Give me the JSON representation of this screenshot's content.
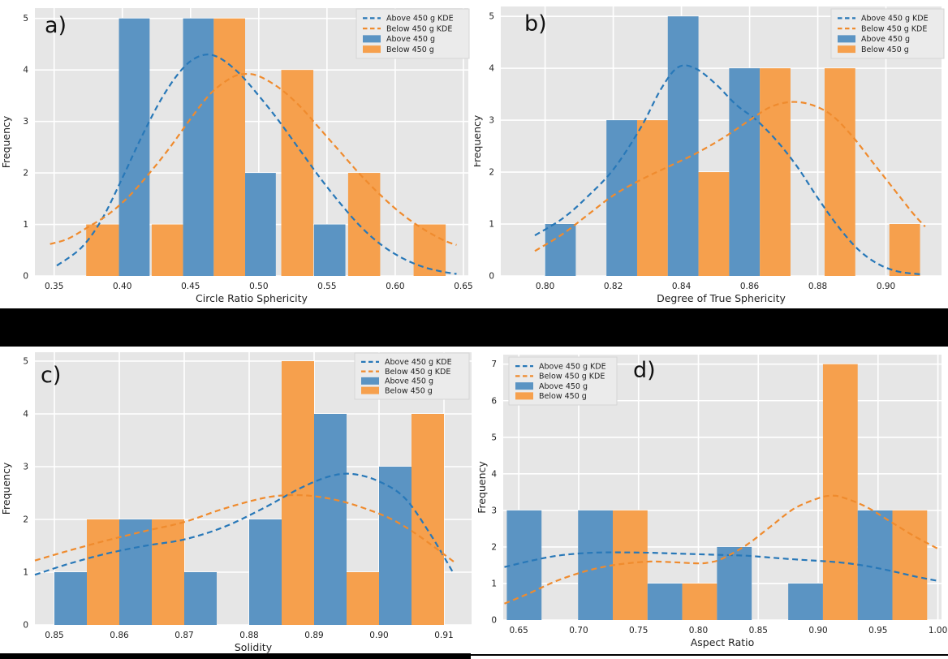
{
  "colors": {
    "hist_above": "#5b94c3",
    "hist_below": "#f6a04d",
    "kde_above": "#2878b8",
    "kde_below": "#ef8b2e",
    "plot_bg": "#e6e6e6",
    "grid": "#ffffff",
    "legend_bg": "#ebebeb",
    "legend_border": "#d6d6d6",
    "text": "#1f1f1f",
    "separator": "#000000"
  },
  "legend": {
    "items": [
      {
        "label": "Above 450 g KDE",
        "swatch": "dashed-line",
        "series": "above"
      },
      {
        "label": "Below 450 g KDE",
        "swatch": "dashed-line",
        "series": "below"
      },
      {
        "label": "Above 450 g",
        "swatch": "patch",
        "series": "above"
      },
      {
        "label": "Below 450 g",
        "swatch": "patch",
        "series": "below"
      }
    ]
  },
  "chart_data": [
    {
      "id": "a",
      "panel_label": "a)",
      "type": "histogram+kde",
      "xlabel": "Circle Ratio Sphericity",
      "ylabel": "Frequency",
      "xlim": [
        0.3359,
        0.6536
      ],
      "ylim": [
        0,
        5.2
      ],
      "xticks": [
        "0.35",
        "0.40",
        "0.45",
        "0.50",
        "0.55",
        "0.60",
        "0.65"
      ],
      "yticks": [
        "0",
        "1",
        "2",
        "3",
        "4",
        "5"
      ],
      "grid": true,
      "legend_position": "top-right",
      "series_names": {
        "above": "Above 450 g",
        "below": "Below 450 g"
      },
      "bars": [
        [
          0.3735,
          0.3975,
          1,
          "below"
        ],
        [
          0.3975,
          0.42,
          5,
          "above"
        ],
        [
          0.4215,
          0.4445,
          1,
          "below"
        ],
        [
          0.4445,
          0.467,
          5,
          "above"
        ],
        [
          0.467,
          0.49,
          5,
          "below"
        ],
        [
          0.49,
          0.5125,
          2,
          "above"
        ],
        [
          0.5165,
          0.54,
          4,
          "below"
        ],
        [
          0.5405,
          0.5635,
          1,
          "above"
        ],
        [
          0.5655,
          0.589,
          2,
          "below"
        ],
        [
          0.6135,
          0.637,
          1,
          "below"
        ]
      ],
      "kde": {
        "above": [
          [
            0.352,
            0.2
          ],
          [
            0.37,
            0.55
          ],
          [
            0.385,
            1.1
          ],
          [
            0.4,
            1.9
          ],
          [
            0.415,
            2.75
          ],
          [
            0.43,
            3.5
          ],
          [
            0.445,
            4.05
          ],
          [
            0.458,
            4.28
          ],
          [
            0.47,
            4.25
          ],
          [
            0.485,
            3.95
          ],
          [
            0.5,
            3.5
          ],
          [
            0.515,
            3.0
          ],
          [
            0.53,
            2.45
          ],
          [
            0.545,
            1.9
          ],
          [
            0.56,
            1.4
          ],
          [
            0.575,
            0.95
          ],
          [
            0.59,
            0.6
          ],
          [
            0.605,
            0.35
          ],
          [
            0.62,
            0.18
          ],
          [
            0.635,
            0.08
          ],
          [
            0.645,
            0.04
          ]
        ],
        "below": [
          [
            0.347,
            0.62
          ],
          [
            0.36,
            0.72
          ],
          [
            0.375,
            0.95
          ],
          [
            0.39,
            1.2
          ],
          [
            0.405,
            1.55
          ],
          [
            0.42,
            2.0
          ],
          [
            0.435,
            2.5
          ],
          [
            0.45,
            3.05
          ],
          [
            0.465,
            3.55
          ],
          [
            0.48,
            3.85
          ],
          [
            0.49,
            3.92
          ],
          [
            0.5,
            3.88
          ],
          [
            0.515,
            3.65
          ],
          [
            0.53,
            3.3
          ],
          [
            0.545,
            2.85
          ],
          [
            0.56,
            2.4
          ],
          [
            0.575,
            1.95
          ],
          [
            0.59,
            1.55
          ],
          [
            0.605,
            1.2
          ],
          [
            0.62,
            0.92
          ],
          [
            0.635,
            0.7
          ],
          [
            0.645,
            0.6
          ]
        ]
      }
    },
    {
      "id": "b",
      "panel_label": "b)",
      "type": "histogram+kde",
      "xlabel": "Degree of True Sphericity",
      "ylabel": "Frequency",
      "xlim": [
        0.787,
        0.9163
      ],
      "ylim": [
        0,
        5.19
      ],
      "xticks": [
        "0.80",
        "0.82",
        "0.84",
        "0.86",
        "0.88",
        "0.90"
      ],
      "yticks": [
        "0",
        "1",
        "2",
        "3",
        "4",
        "5"
      ],
      "grid": true,
      "legend_position": "top-right",
      "series_names": {
        "above": "Above 450 g",
        "below": "Below 450 g"
      },
      "bars": [
        [
          0.8,
          0.809,
          1,
          "above"
        ],
        [
          0.818,
          0.827,
          3,
          "above"
        ],
        [
          0.827,
          0.836,
          3,
          "below"
        ],
        [
          0.836,
          0.845,
          5,
          "above"
        ],
        [
          0.845,
          0.854,
          2,
          "below"
        ],
        [
          0.854,
          0.863,
          4,
          "above"
        ],
        [
          0.863,
          0.872,
          4,
          "below"
        ],
        [
          0.882,
          0.891,
          4,
          "below"
        ],
        [
          0.901,
          0.91,
          1,
          "below"
        ]
      ],
      "kde": {
        "above": [
          [
            0.797,
            0.78
          ],
          [
            0.805,
            1.1
          ],
          [
            0.812,
            1.5
          ],
          [
            0.82,
            2.05
          ],
          [
            0.828,
            2.85
          ],
          [
            0.834,
            3.6
          ],
          [
            0.839,
            4.02
          ],
          [
            0.844,
            4.0
          ],
          [
            0.85,
            3.7
          ],
          [
            0.856,
            3.3
          ],
          [
            0.862,
            3.0
          ],
          [
            0.868,
            2.6
          ],
          [
            0.874,
            2.1
          ],
          [
            0.88,
            1.5
          ],
          [
            0.886,
            0.95
          ],
          [
            0.892,
            0.5
          ],
          [
            0.898,
            0.22
          ],
          [
            0.904,
            0.08
          ],
          [
            0.9105,
            0.03
          ]
        ],
        "below": [
          [
            0.797,
            0.48
          ],
          [
            0.805,
            0.8
          ],
          [
            0.812,
            1.15
          ],
          [
            0.82,
            1.55
          ],
          [
            0.828,
            1.85
          ],
          [
            0.836,
            2.1
          ],
          [
            0.844,
            2.35
          ],
          [
            0.852,
            2.65
          ],
          [
            0.86,
            3.0
          ],
          [
            0.866,
            3.25
          ],
          [
            0.872,
            3.35
          ],
          [
            0.878,
            3.3
          ],
          [
            0.884,
            3.1
          ],
          [
            0.89,
            2.7
          ],
          [
            0.896,
            2.2
          ],
          [
            0.902,
            1.7
          ],
          [
            0.908,
            1.2
          ],
          [
            0.9115,
            0.95
          ]
        ]
      }
    },
    {
      "id": "c",
      "panel_label": "c)",
      "type": "histogram+kde",
      "xlabel": "Solidity",
      "ylabel": "Frequency",
      "xlim": [
        0.847,
        0.91425
      ],
      "ylim": [
        0,
        5.169
      ],
      "xticks": [
        "0.85",
        "0.86",
        "0.87",
        "0.88",
        "0.89",
        "0.90",
        "0.91"
      ],
      "yticks": [
        "0",
        "1",
        "2",
        "3",
        "4",
        "5"
      ],
      "grid": true,
      "legend_position": "top-right",
      "series_names": {
        "above": "Above 450 g",
        "below": "Below 450 g"
      },
      "bars": [
        [
          0.85,
          0.855,
          1,
          "above"
        ],
        [
          0.855,
          0.86,
          2,
          "below"
        ],
        [
          0.86,
          0.865,
          2,
          "above"
        ],
        [
          0.865,
          0.87,
          2,
          "below"
        ],
        [
          0.87,
          0.875,
          1,
          "above"
        ],
        [
          0.88,
          0.885,
          2,
          "above"
        ],
        [
          0.885,
          0.89,
          5,
          "below"
        ],
        [
          0.89,
          0.895,
          4,
          "above"
        ],
        [
          0.895,
          0.9,
          1,
          "below"
        ],
        [
          0.9,
          0.905,
          3,
          "above"
        ],
        [
          0.905,
          0.91,
          4,
          "below"
        ]
      ],
      "kde": {
        "above": [
          [
            0.847,
            0.95
          ],
          [
            0.852,
            1.15
          ],
          [
            0.858,
            1.35
          ],
          [
            0.864,
            1.5
          ],
          [
            0.87,
            1.62
          ],
          [
            0.876,
            1.85
          ],
          [
            0.882,
            2.2
          ],
          [
            0.888,
            2.6
          ],
          [
            0.8925,
            2.82
          ],
          [
            0.896,
            2.86
          ],
          [
            0.9,
            2.72
          ],
          [
            0.904,
            2.4
          ],
          [
            0.908,
            1.7
          ],
          [
            0.9115,
            0.97
          ]
        ],
        "below": [
          [
            0.847,
            1.22
          ],
          [
            0.852,
            1.4
          ],
          [
            0.858,
            1.6
          ],
          [
            0.864,
            1.78
          ],
          [
            0.87,
            1.95
          ],
          [
            0.876,
            2.2
          ],
          [
            0.882,
            2.4
          ],
          [
            0.886,
            2.46
          ],
          [
            0.89,
            2.44
          ],
          [
            0.894,
            2.35
          ],
          [
            0.898,
            2.2
          ],
          [
            0.902,
            2.0
          ],
          [
            0.906,
            1.7
          ],
          [
            0.9115,
            1.2
          ]
        ]
      }
    },
    {
      "id": "d",
      "panel_label": "d)",
      "type": "histogram+kde",
      "xlabel": "Aspect Ratio",
      "ylabel": "Frequency",
      "xlim": [
        0.637,
        1.003
      ],
      "ylim": [
        0,
        7.26
      ],
      "xticks": [
        "0.65",
        "0.70",
        "0.75",
        "0.80",
        "0.85",
        "0.90",
        "0.95",
        "1.00"
      ],
      "yticks": [
        "0",
        "1",
        "2",
        "3",
        "4",
        "5",
        "6",
        "7"
      ],
      "grid": true,
      "legend_position": "top-left",
      "series_names": {
        "above": "Above 450 g",
        "below": "Below 450 g"
      },
      "bars": [
        [
          0.64,
          0.669,
          3,
          "above"
        ],
        [
          0.6995,
          0.7285,
          3,
          "above"
        ],
        [
          0.7285,
          0.7575,
          3,
          "below"
        ],
        [
          0.7575,
          0.7865,
          1,
          "above"
        ],
        [
          0.7865,
          0.8155,
          1,
          "below"
        ],
        [
          0.8155,
          0.8445,
          2,
          "above"
        ],
        [
          0.875,
          0.904,
          1,
          "above"
        ],
        [
          0.904,
          0.933,
          7,
          "below"
        ],
        [
          0.933,
          0.962,
          3,
          "above"
        ],
        [
          0.962,
          0.991,
          3,
          "below"
        ]
      ],
      "kde": {
        "above": [
          [
            0.638,
            1.45
          ],
          [
            0.66,
            1.62
          ],
          [
            0.68,
            1.75
          ],
          [
            0.7,
            1.82
          ],
          [
            0.72,
            1.85
          ],
          [
            0.74,
            1.85
          ],
          [
            0.76,
            1.84
          ],
          [
            0.78,
            1.82
          ],
          [
            0.8,
            1.8
          ],
          [
            0.82,
            1.78
          ],
          [
            0.84,
            1.76
          ],
          [
            0.86,
            1.71
          ],
          [
            0.88,
            1.66
          ],
          [
            0.9,
            1.62
          ],
          [
            0.92,
            1.57
          ],
          [
            0.94,
            1.48
          ],
          [
            0.96,
            1.35
          ],
          [
            0.98,
            1.2
          ],
          [
            1.0,
            1.07
          ]
        ],
        "below": [
          [
            0.638,
            0.45
          ],
          [
            0.66,
            0.75
          ],
          [
            0.68,
            1.05
          ],
          [
            0.7,
            1.28
          ],
          [
            0.72,
            1.45
          ],
          [
            0.74,
            1.55
          ],
          [
            0.76,
            1.6
          ],
          [
            0.78,
            1.58
          ],
          [
            0.8,
            1.55
          ],
          [
            0.81,
            1.58
          ],
          [
            0.82,
            1.68
          ],
          [
            0.84,
            2.05
          ],
          [
            0.86,
            2.55
          ],
          [
            0.88,
            3.05
          ],
          [
            0.9,
            3.33
          ],
          [
            0.91,
            3.4
          ],
          [
            0.92,
            3.36
          ],
          [
            0.94,
            3.1
          ],
          [
            0.96,
            2.7
          ],
          [
            0.98,
            2.3
          ],
          [
            1.0,
            1.95
          ]
        ]
      }
    }
  ]
}
